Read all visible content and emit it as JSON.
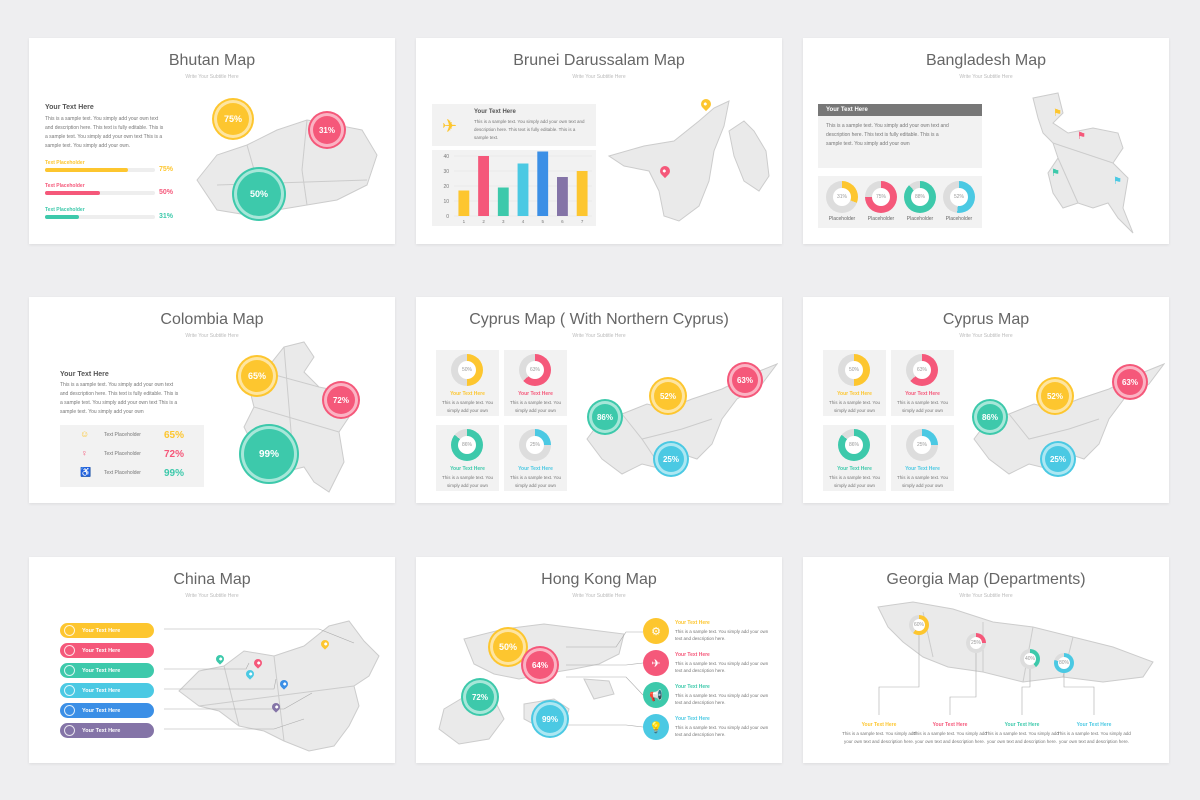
{
  "common": {
    "subtitle": "Write Your Subtitle Here",
    "your_text": "Your Text Here",
    "sample_long": "This is a sample text. You simply add your own text and description here. This text is fully editable. This is a sample text. You simply add your own text This is a sample text. You simply add your own.",
    "sample_short": "This is a sample text. You simply add your own",
    "text_placeholder": "Text Placeholder",
    "placeholder": "Placeholder",
    "sample_hk": "This is a sample text. You simply add your own text and description here.",
    "sample_geo": "This is a sample text. You simply add your own text and description here."
  },
  "bhutan": {
    "title": "Bhutan Map",
    "bubbles": [
      "75%",
      "31%",
      "50%"
    ],
    "bars": [
      {
        "label": "Text Placeholder",
        "pct": "75%",
        "value": 75,
        "color": "#fdc62f"
      },
      {
        "label": "Text Placeholder",
        "pct": "50%",
        "value": 50,
        "color": "#f5587a"
      },
      {
        "label": "Text Placeholder",
        "pct": "31%",
        "value": 31,
        "color": "#3dc9ab"
      }
    ]
  },
  "brunei": {
    "title": "Brunei Darussalam Map",
    "text": "This is a sample text. You simply add your own text and description here. This text is fully editable. This is a sample text.",
    "chart_data": {
      "type": "bar",
      "categories": [
        "1",
        "2",
        "3",
        "4",
        "5",
        "6",
        "7"
      ],
      "values": [
        17,
        40,
        19,
        35,
        43,
        26,
        30
      ],
      "ylim": [
        0,
        40
      ],
      "yticks": [
        0,
        10,
        20,
        30,
        40
      ],
      "colors": [
        "#fdc62f",
        "#f5587a",
        "#3dc9ab",
        "#4bc9e3",
        "#3b8fe6",
        "#8474a7",
        "#fdc62f"
      ]
    }
  },
  "bangladesh": {
    "title": "Bangladesh Map",
    "text": "This is a sample text. You simply add your own text and description here. This text is fully editable. This is a sample text. You simply add your own",
    "donuts": [
      {
        "pct": "31%",
        "value": 31,
        "color": "#fdc62f"
      },
      {
        "pct": "75%",
        "value": 75,
        "color": "#f5587a"
      },
      {
        "pct": "88%",
        "value": 88,
        "color": "#3dc9ab"
      },
      {
        "pct": "52%",
        "value": 52,
        "color": "#4bc9e3"
      }
    ]
  },
  "colombia": {
    "title": "Colombia Map",
    "text": "This is a sample text. You simply add your own text and description here. This text is fully editable. This is a sample text. You simply add your own text This is a sample text. You simply add your own",
    "bubbles": [
      "65%",
      "72%",
      "99%"
    ],
    "rows": [
      {
        "label": "Text Placeholder",
        "pct": "65%",
        "color": "#fdc62f"
      },
      {
        "label": "Text Placeholder",
        "pct": "72%",
        "color": "#f5587a"
      },
      {
        "label": "Text Placeholder",
        "pct": "99%",
        "color": "#3dc9ab"
      }
    ]
  },
  "cyprus_n": {
    "title": "Cyprus Map ( With Northern Cyprus)",
    "bubbles": [
      "63%",
      "52%",
      "86%",
      "25%"
    ],
    "cards": [
      {
        "pct": "50%",
        "value": 50,
        "color": "#fdc62f"
      },
      {
        "pct": "63%",
        "value": 63,
        "color": "#f5587a"
      },
      {
        "pct": "86%",
        "value": 86,
        "color": "#3dc9ab"
      },
      {
        "pct": "25%",
        "value": 25,
        "color": "#4bc9e3"
      }
    ]
  },
  "cyprus": {
    "title": "Cyprus Map",
    "bubbles": [
      "63%",
      "52%",
      "86%",
      "25%"
    ],
    "cards": [
      {
        "pct": "50%",
        "value": 50,
        "color": "#fdc62f"
      },
      {
        "pct": "63%",
        "value": 63,
        "color": "#f5587a"
      },
      {
        "pct": "86%",
        "value": 86,
        "color": "#3dc9ab"
      },
      {
        "pct": "25%",
        "value": 25,
        "color": "#4bc9e3"
      }
    ]
  },
  "china": {
    "title": "China Map",
    "items": [
      "Your Text Here",
      "Your Text Here",
      "Your Text Here",
      "Your Text Here",
      "Your Text Here",
      "Your Text Here"
    ]
  },
  "hongkong": {
    "title": "Hong Kong Map",
    "bubbles": [
      "50%",
      "64%",
      "72%",
      "99%"
    ],
    "icons": [
      "gear-icon",
      "plane-icon",
      "megaphone-icon",
      "bulb-icon"
    ]
  },
  "georgia": {
    "title": "Georgia Map (Departments)",
    "donuts": [
      "60%",
      "25%",
      "40%",
      "80%"
    ]
  }
}
